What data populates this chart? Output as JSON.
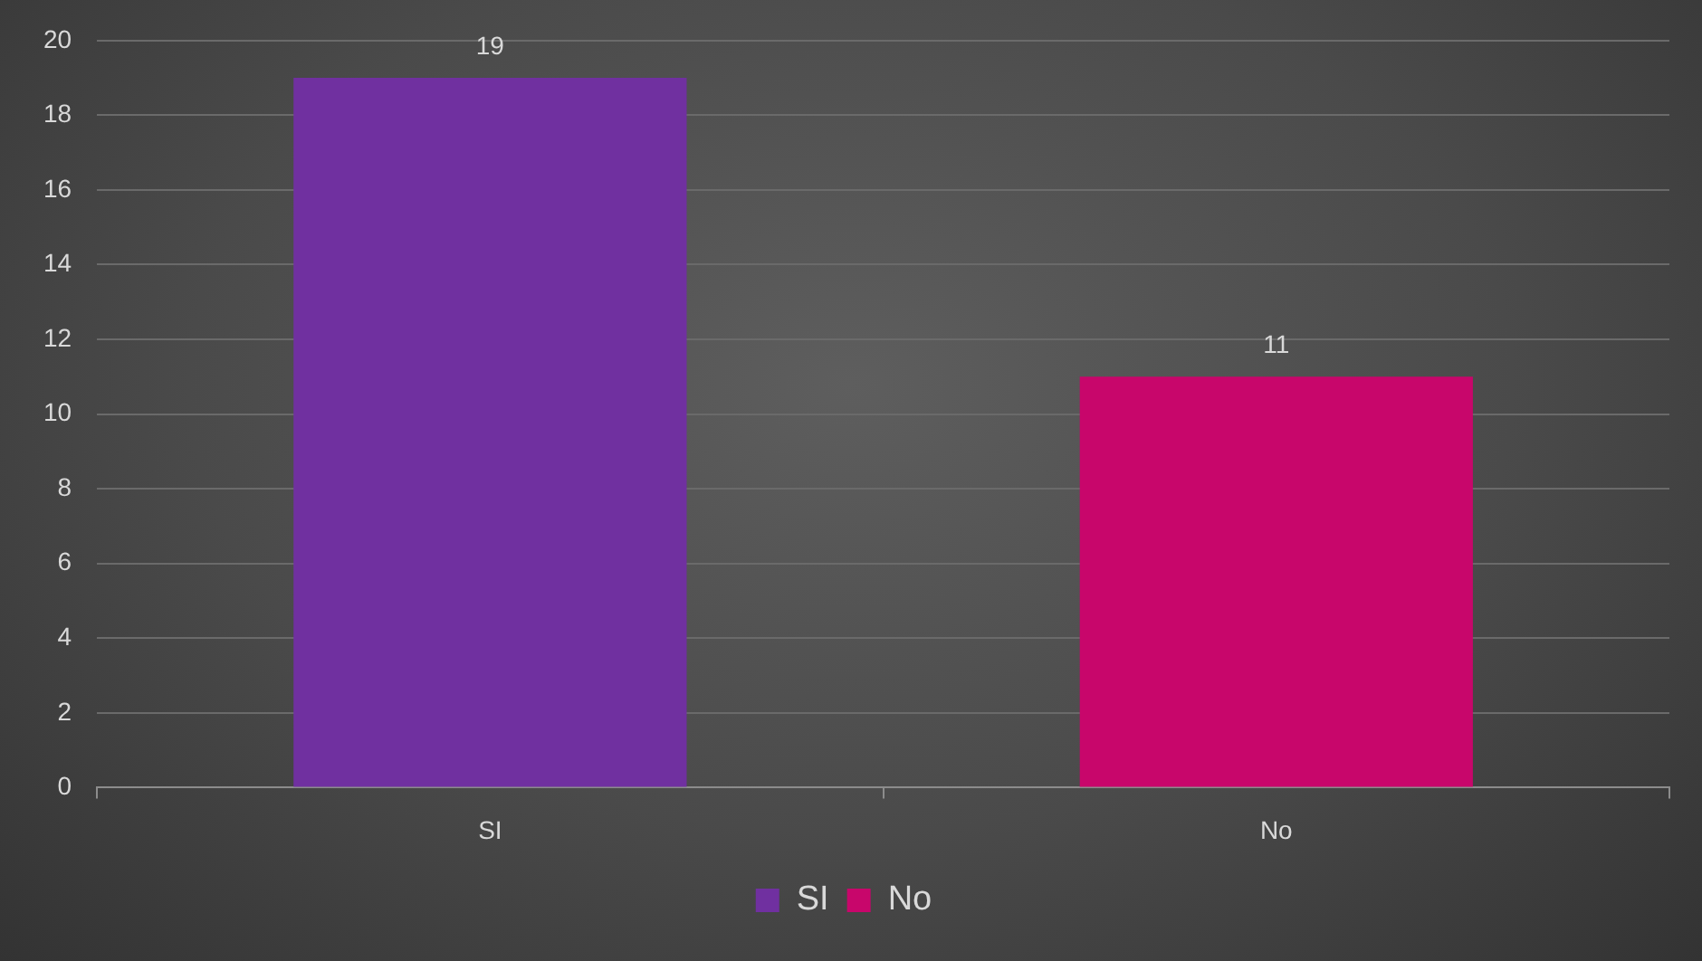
{
  "chart_data": {
    "type": "bar",
    "categories": [
      "SI",
      "No"
    ],
    "series": [
      {
        "name": "SI",
        "color": "#7030a0",
        "values": [
          19,
          null
        ]
      },
      {
        "name": "No",
        "color": "#c8066b",
        "values": [
          null,
          11
        ]
      }
    ],
    "ylim": [
      0,
      20
    ],
    "yticks": [
      0,
      2,
      4,
      6,
      8,
      10,
      12,
      14,
      16,
      18,
      20
    ],
    "grid": "y",
    "legend": "bottom",
    "data_labels": true
  }
}
